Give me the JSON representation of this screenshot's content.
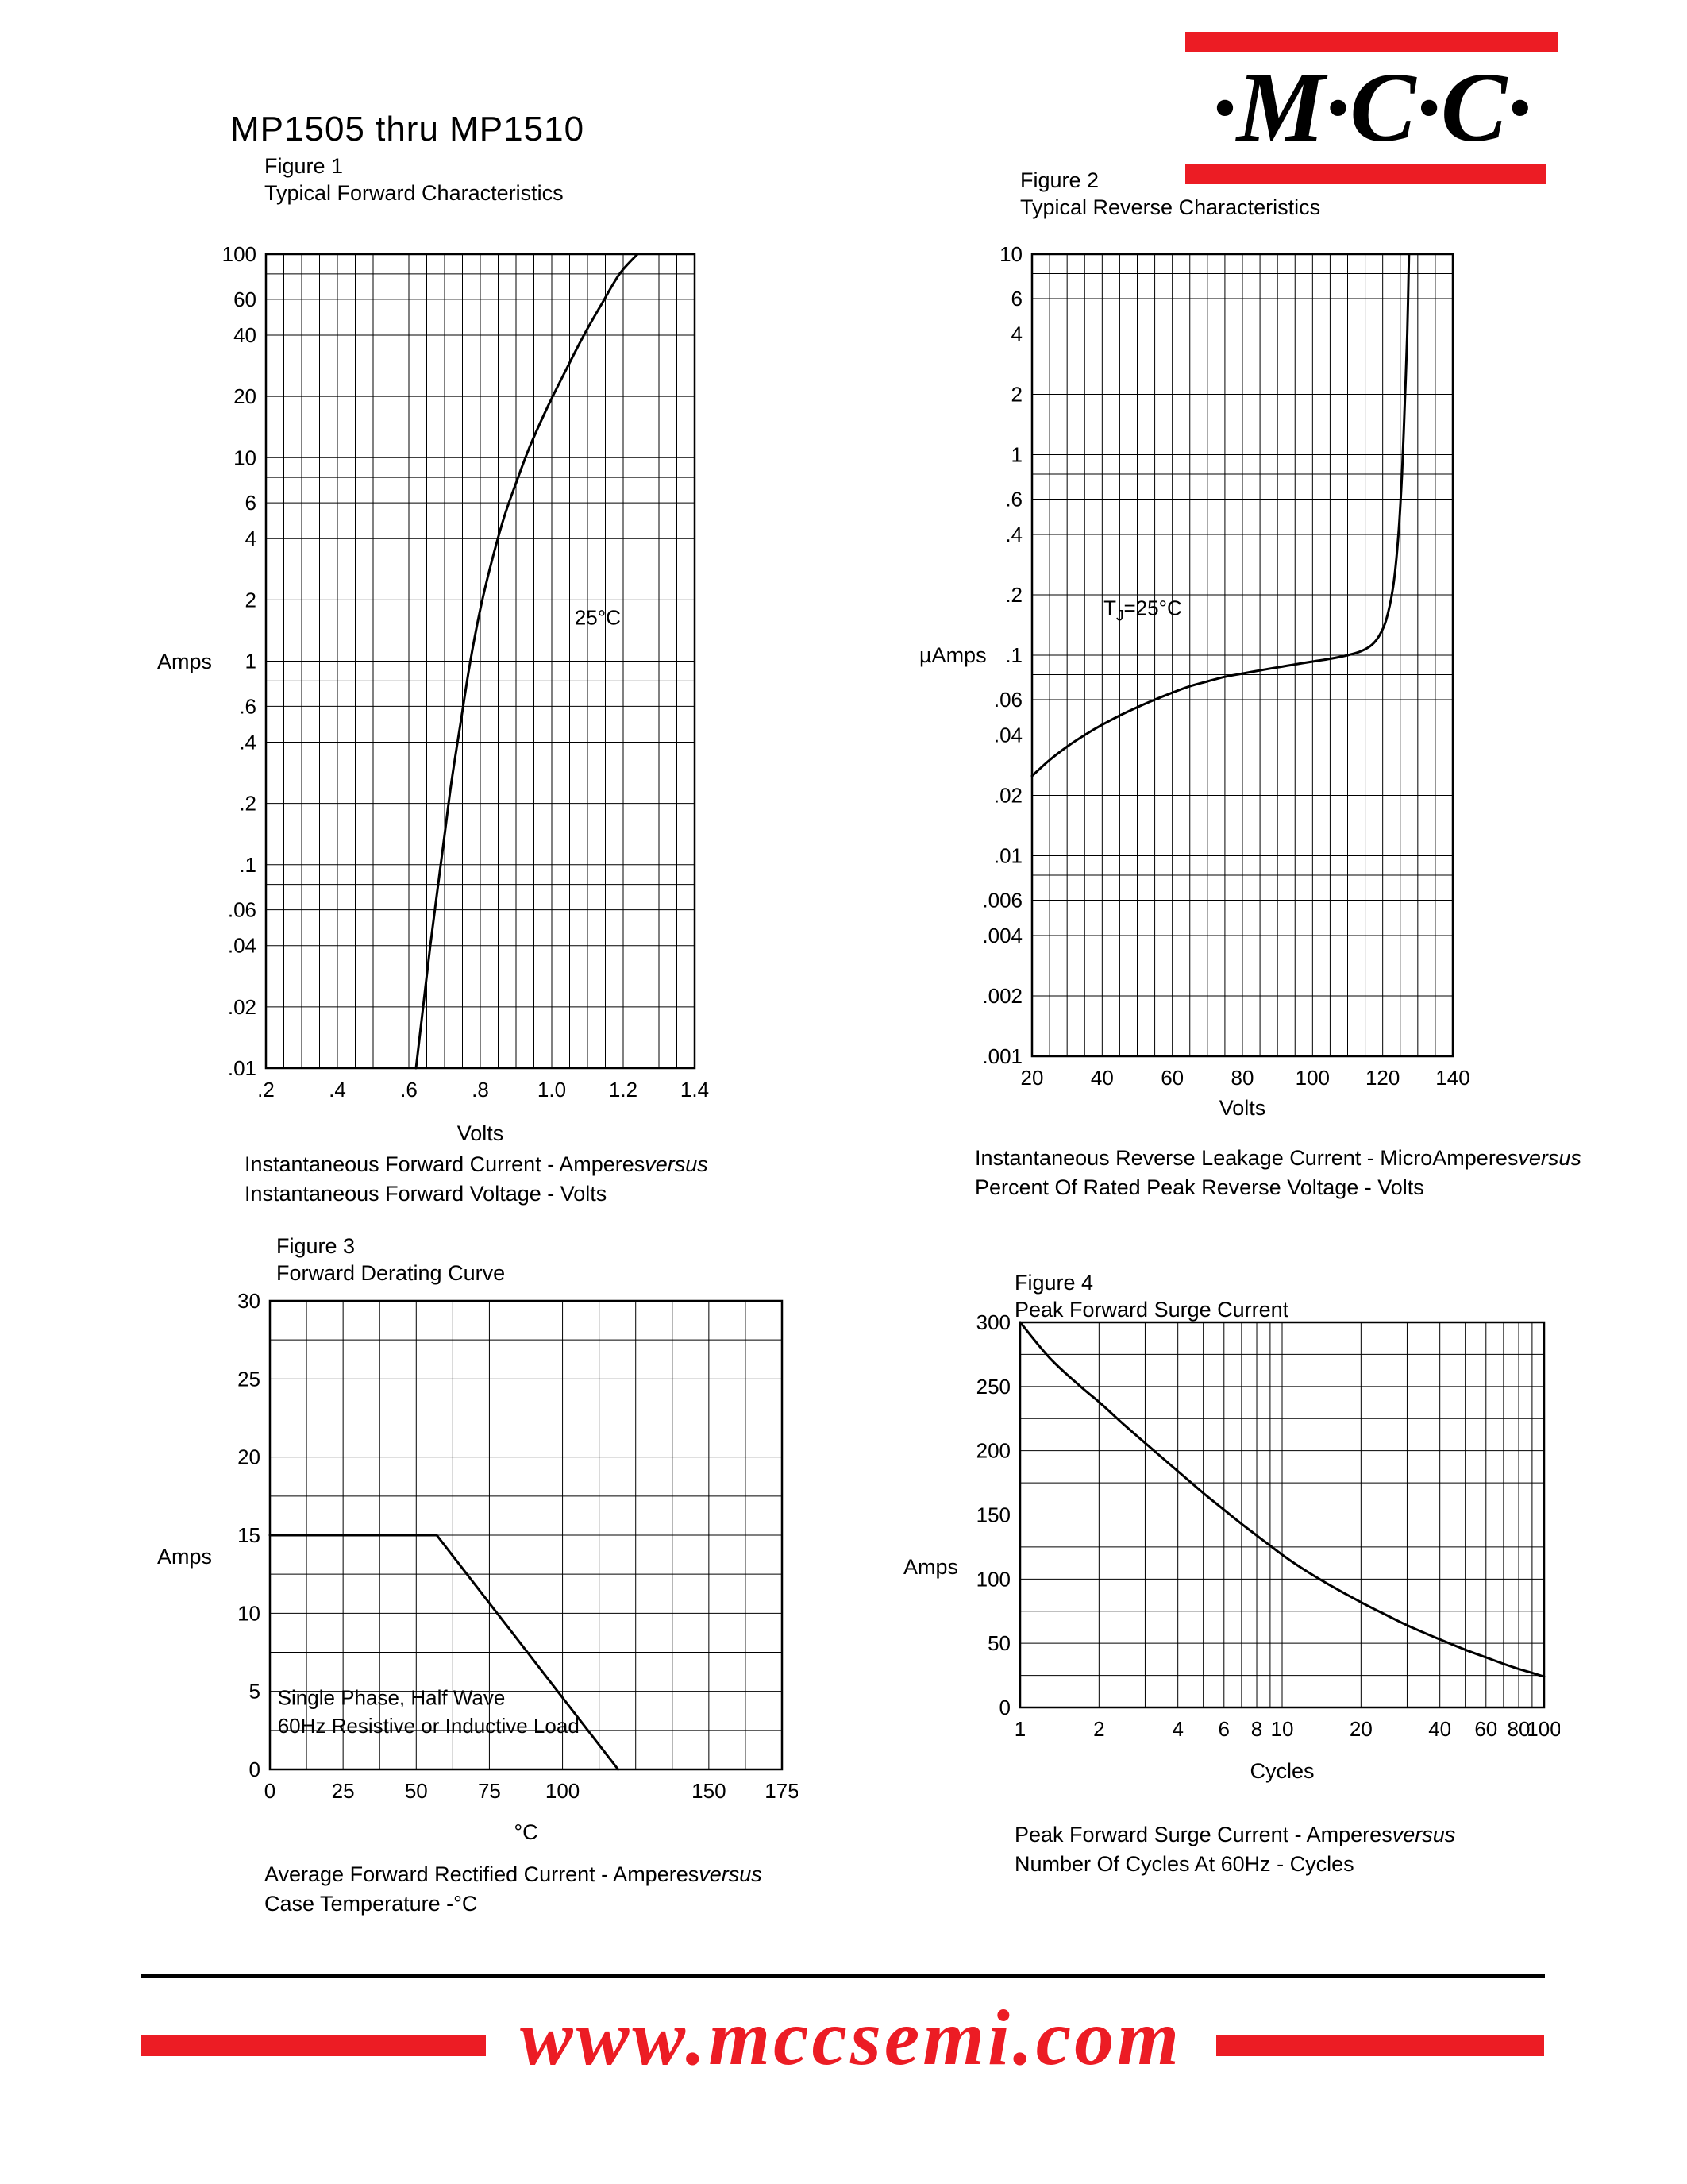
{
  "page": {
    "title": "MP1505 thru MP1510",
    "logo": {
      "text": "·M·C·C·"
    },
    "footer": {
      "url": "www.mccsemi.com"
    },
    "colors": {
      "accent_red": "#ec1c24",
      "ink": "#000000"
    }
  },
  "chart_data": [
    {
      "id": "fig1",
      "type": "line",
      "figure_label": "Figure 1",
      "title": "Typical Forward Characteristics",
      "xlabel": "Volts",
      "ylabel": "Amps",
      "x": {
        "scale": "linear",
        "min": 0.2,
        "max": 1.4,
        "minor_step": 0.05,
        "ticks": [
          {
            "v": 0.2,
            "t": ".2"
          },
          {
            "v": 0.4,
            "t": ".4"
          },
          {
            "v": 0.6,
            "t": ".6"
          },
          {
            "v": 0.8,
            "t": ".8"
          },
          {
            "v": 1.0,
            "t": "1.0"
          },
          {
            "v": 1.2,
            "t": "1.2"
          },
          {
            "v": 1.4,
            "t": "1.4"
          }
        ]
      },
      "y": {
        "scale": "log",
        "min": 0.01,
        "max": 100,
        "mantissas": [
          1,
          2,
          4,
          6,
          8
        ],
        "ticks": [
          {
            "v": 100,
            "t": "100"
          },
          {
            "v": 60,
            "t": "60"
          },
          {
            "v": 40,
            "t": "40"
          },
          {
            "v": 20,
            "t": "20"
          },
          {
            "v": 10,
            "t": "10"
          },
          {
            "v": 6,
            "t": "6"
          },
          {
            "v": 4,
            "t": "4"
          },
          {
            "v": 2,
            "t": "2"
          },
          {
            "v": 1,
            "t": "1"
          },
          {
            "v": 0.6,
            "t": ".6"
          },
          {
            "v": 0.4,
            "t": ".4"
          },
          {
            "v": 0.2,
            "t": ".2"
          },
          {
            "v": 0.1,
            "t": ".1"
          },
          {
            "v": 0.06,
            "t": ".06"
          },
          {
            "v": 0.04,
            "t": ".04"
          },
          {
            "v": 0.02,
            "t": ".02"
          },
          {
            "v": 0.01,
            "t": ".01"
          }
        ]
      },
      "series": [
        {
          "name": "forward-current",
          "points": [
            [
              0.62,
              0.01
            ],
            [
              0.64,
              0.02
            ],
            [
              0.66,
              0.04
            ],
            [
              0.68,
              0.075
            ],
            [
              0.7,
              0.14
            ],
            [
              0.72,
              0.26
            ],
            [
              0.745,
              0.5
            ],
            [
              0.77,
              0.95
            ],
            [
              0.8,
              1.8
            ],
            [
              0.83,
              3.0
            ],
            [
              0.865,
              5.0
            ],
            [
              0.9,
              7.5
            ],
            [
              0.94,
              11.5
            ],
            [
              0.99,
              18
            ],
            [
              1.04,
              27
            ],
            [
              1.09,
              40
            ],
            [
              1.14,
              57
            ],
            [
              1.19,
              80
            ],
            [
              1.24,
              100
            ]
          ]
        }
      ],
      "annotations": [
        {
          "parts": [
            {
              "t": "25°C"
            }
          ],
          "fx": 0.72,
          "fy": 0.455
        }
      ],
      "caption": {
        "line1": "Instantaneous Forward Current - Amperes",
        "versus": "versus",
        "line2": "Instantaneous Forward Voltage - Volts"
      }
    },
    {
      "id": "fig2",
      "type": "line",
      "figure_label": "Figure 2",
      "title": "Typical Reverse Characteristics",
      "xlabel": "Volts",
      "ylabel": "µAmps",
      "x": {
        "scale": "linear",
        "min": 20,
        "max": 140,
        "minor_step": 5,
        "ticks": [
          {
            "v": 20,
            "t": "20"
          },
          {
            "v": 40,
            "t": "40"
          },
          {
            "v": 60,
            "t": "60"
          },
          {
            "v": 80,
            "t": "80"
          },
          {
            "v": 100,
            "t": "100"
          },
          {
            "v": 120,
            "t": "120"
          },
          {
            "v": 140,
            "t": "140"
          }
        ]
      },
      "y": {
        "scale": "log",
        "min": 0.001,
        "max": 10,
        "mantissas": [
          1,
          2,
          4,
          6,
          8
        ],
        "ticks": [
          {
            "v": 10,
            "t": "10"
          },
          {
            "v": 6,
            "t": "6"
          },
          {
            "v": 4,
            "t": "4"
          },
          {
            "v": 2,
            "t": "2"
          },
          {
            "v": 1,
            "t": "1"
          },
          {
            "v": 0.6,
            "t": ".6"
          },
          {
            "v": 0.4,
            "t": ".4"
          },
          {
            "v": 0.2,
            "t": ".2"
          },
          {
            "v": 0.1,
            "t": ".1"
          },
          {
            "v": 0.06,
            "t": ".06"
          },
          {
            "v": 0.04,
            "t": ".04"
          },
          {
            "v": 0.02,
            "t": ".02"
          },
          {
            "v": 0.01,
            "t": ".01"
          },
          {
            "v": 0.006,
            "t": ".006"
          },
          {
            "v": 0.004,
            "t": ".004"
          },
          {
            "v": 0.002,
            "t": ".002"
          },
          {
            "v": 0.001,
            "t": ".001"
          }
        ]
      },
      "series": [
        {
          "name": "reverse-leakage",
          "points": [
            [
              20,
              0.025
            ],
            [
              25,
              0.03
            ],
            [
              30,
              0.035
            ],
            [
              35,
              0.04
            ],
            [
              40,
              0.045
            ],
            [
              45,
              0.05
            ],
            [
              50,
              0.055
            ],
            [
              55,
              0.06
            ],
            [
              60,
              0.065
            ],
            [
              65,
              0.07
            ],
            [
              70,
              0.074
            ],
            [
              75,
              0.078
            ],
            [
              80,
              0.081
            ],
            [
              85,
              0.084
            ],
            [
              90,
              0.087
            ],
            [
              95,
              0.09
            ],
            [
              100,
              0.093
            ],
            [
              105,
              0.096
            ],
            [
              110,
              0.1
            ],
            [
              114,
              0.105
            ],
            [
              117,
              0.113
            ],
            [
              119,
              0.125
            ],
            [
              121,
              0.15
            ],
            [
              123,
              0.22
            ],
            [
              124.5,
              0.4
            ],
            [
              125.5,
              0.8
            ],
            [
              126.3,
              1.8
            ],
            [
              127,
              4
            ],
            [
              127.5,
              10
            ]
          ]
        }
      ],
      "annotations": [
        {
          "parts": [
            {
              "t": "T"
            },
            {
              "t": "J",
              "sub": true
            },
            {
              "t": "=25°C"
            }
          ],
          "fx": 0.17,
          "fy": 0.45
        }
      ],
      "caption": {
        "line1": "Instantaneous Reverse Leakage Current - MicroAmperes",
        "versus": "versus",
        "line2": "Percent Of Rated Peak Reverse Voltage - Volts"
      }
    },
    {
      "id": "fig3",
      "type": "line",
      "smooth": false,
      "figure_label": "Figure 3",
      "title": "Forward Derating Curve",
      "xlabel": "°C",
      "ylabel": "Amps",
      "x": {
        "scale": "linear",
        "min": 0,
        "max": 175,
        "minor_step": 12.5,
        "ticks": [
          {
            "v": 0,
            "t": "0"
          },
          {
            "v": 25,
            "t": "25"
          },
          {
            "v": 50,
            "t": "50"
          },
          {
            "v": 75,
            "t": "75"
          },
          {
            "v": 100,
            "t": "100"
          },
          {
            "v": 150,
            "t": "150"
          },
          {
            "v": 175,
            "t": "175"
          }
        ]
      },
      "y": {
        "scale": "linear",
        "min": 0,
        "max": 30,
        "minor_step": 2.5,
        "ticks": [
          {
            "v": 30,
            "t": "30"
          },
          {
            "v": 25,
            "t": "25"
          },
          {
            "v": 20,
            "t": "20"
          },
          {
            "v": 15,
            "t": "15"
          },
          {
            "v": 10,
            "t": "10"
          },
          {
            "v": 5,
            "t": "5"
          },
          {
            "v": 0,
            "t": "0"
          }
        ]
      },
      "series": [
        {
          "name": "derating",
          "points": [
            [
              0,
              15
            ],
            [
              57,
              15
            ],
            [
              119,
              0
            ]
          ]
        }
      ],
      "annotations": [
        {
          "parts": [
            {
              "t": "Single Phase, Half Wave"
            }
          ],
          "fx": 0.015,
          "fy": 0.862
        },
        {
          "parts": [
            {
              "t": "60Hz Resistive or Inductive Load"
            }
          ],
          "fx": 0.015,
          "fy": 0.922
        }
      ],
      "caption": {
        "line1": "Average Forward Rectified Current - Amperes",
        "versus": "versus",
        "line2": "Case Temperature -°C"
      }
    },
    {
      "id": "fig4",
      "type": "line",
      "figure_label": "Figure 4",
      "title": "Peak Forward Surge Current",
      "xlabel": "Cycles",
      "ylabel": "Amps",
      "x": {
        "scale": "log",
        "min": 1,
        "max": 100,
        "mantissas": [
          1,
          2,
          3,
          4,
          5,
          6,
          7,
          8,
          9
        ],
        "ticks": [
          {
            "v": 1,
            "t": "1"
          },
          {
            "v": 2,
            "t": "2"
          },
          {
            "v": 4,
            "t": "4"
          },
          {
            "v": 6,
            "t": "6"
          },
          {
            "v": 8,
            "t": "8"
          },
          {
            "v": 10,
            "t": "10"
          },
          {
            "v": 20,
            "t": "20"
          },
          {
            "v": 40,
            "t": "40"
          },
          {
            "v": 60,
            "t": "60"
          },
          {
            "v": 80,
            "t": "80"
          },
          {
            "v": 100,
            "t": "100"
          }
        ]
      },
      "y": {
        "scale": "linear",
        "min": 0,
        "max": 300,
        "minor_step": 25,
        "ticks": [
          {
            "v": 300,
            "t": "300"
          },
          {
            "v": 250,
            "t": "250"
          },
          {
            "v": 200,
            "t": "200"
          },
          {
            "v": 150,
            "t": "150"
          },
          {
            "v": 100,
            "t": "100"
          },
          {
            "v": 50,
            "t": "50"
          },
          {
            "v": 0,
            "t": "0"
          }
        ]
      },
      "series": [
        {
          "name": "surge-current",
          "points": [
            [
              1,
              300
            ],
            [
              1.3,
              272
            ],
            [
              1.7,
              250
            ],
            [
              2,
              238
            ],
            [
              2.5,
              220
            ],
            [
              3,
              206
            ],
            [
              4,
              184
            ],
            [
              5,
              167
            ],
            [
              6,
              154
            ],
            [
              7,
              143
            ],
            [
              8,
              134
            ],
            [
              10,
              119
            ],
            [
              12,
              108
            ],
            [
              15,
              96
            ],
            [
              20,
              82
            ],
            [
              25,
              72
            ],
            [
              30,
              64
            ],
            [
              40,
              53
            ],
            [
              50,
              45
            ],
            [
              60,
              39
            ],
            [
              70,
              34
            ],
            [
              80,
              30
            ],
            [
              90,
              27
            ],
            [
              100,
              24
            ]
          ]
        }
      ],
      "annotations": [],
      "caption": {
        "line1": "Peak Forward Surge Current - Amperes",
        "versus": "versus",
        "line2": "Number Of Cycles At 60Hz - Cycles"
      }
    }
  ]
}
